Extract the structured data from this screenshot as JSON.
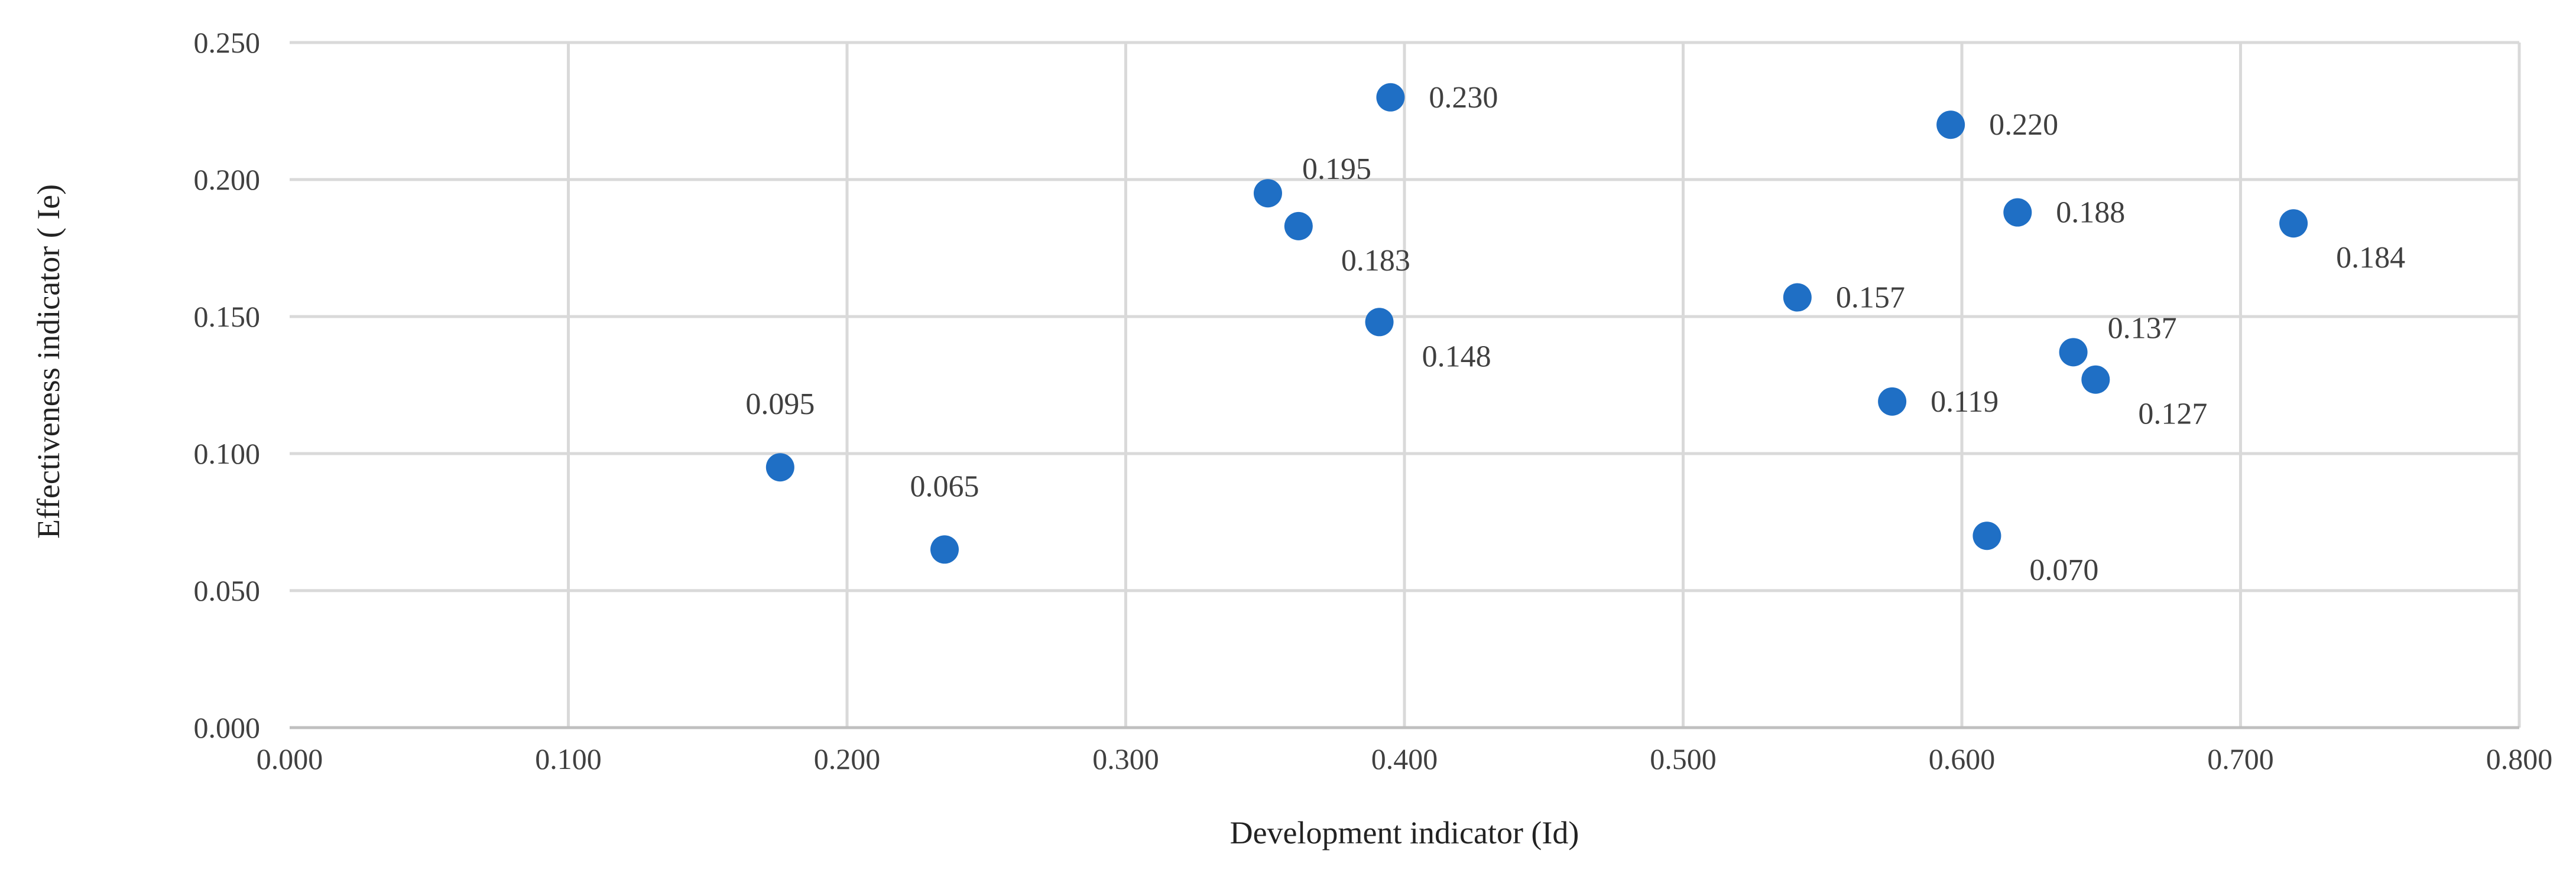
{
  "chart_data": {
    "type": "scatter",
    "title": "",
    "xlabel": "Development indicator (Id)",
    "ylabel": "Effectiveness indicator ( Ie)",
    "xlim": [
      0.0,
      0.8
    ],
    "ylim": [
      0.0,
      0.25
    ],
    "x_ticks": [
      "0.000",
      "0.100",
      "0.200",
      "0.300",
      "0.400",
      "0.500",
      "0.600",
      "0.700",
      "0.800"
    ],
    "y_ticks": [
      "0.000",
      "0.050",
      "0.100",
      "0.150",
      "0.200",
      "0.250"
    ],
    "grid": true,
    "marker_color": "#1f6fc5",
    "points": [
      {
        "x": 0.176,
        "y": 0.095,
        "label": "0.095",
        "label_pos": "above"
      },
      {
        "x": 0.235,
        "y": 0.065,
        "label": "0.065",
        "label_pos": "above"
      },
      {
        "x": 0.351,
        "y": 0.195,
        "label": "0.195",
        "label_pos": "upper-right"
      },
      {
        "x": 0.362,
        "y": 0.183,
        "label": "0.183",
        "label_pos": "lower-right"
      },
      {
        "x": 0.391,
        "y": 0.148,
        "label": "0.148",
        "label_pos": "lower-right"
      },
      {
        "x": 0.395,
        "y": 0.23,
        "label": "0.230",
        "label_pos": "right"
      },
      {
        "x": 0.541,
        "y": 0.157,
        "label": "0.157",
        "label_pos": "right"
      },
      {
        "x": 0.575,
        "y": 0.119,
        "label": "0.119",
        "label_pos": "right"
      },
      {
        "x": 0.596,
        "y": 0.22,
        "label": "0.220",
        "label_pos": "right"
      },
      {
        "x": 0.609,
        "y": 0.07,
        "label": "0.070",
        "label_pos": "lower-right"
      },
      {
        "x": 0.62,
        "y": 0.188,
        "label": "0.188",
        "label_pos": "right"
      },
      {
        "x": 0.64,
        "y": 0.137,
        "label": "0.137",
        "label_pos": "upper-right"
      },
      {
        "x": 0.648,
        "y": 0.127,
        "label": "0.127",
        "label_pos": "lower-right"
      },
      {
        "x": 0.719,
        "y": 0.184,
        "label": "0.184",
        "label_pos": "lower-right"
      }
    ]
  }
}
